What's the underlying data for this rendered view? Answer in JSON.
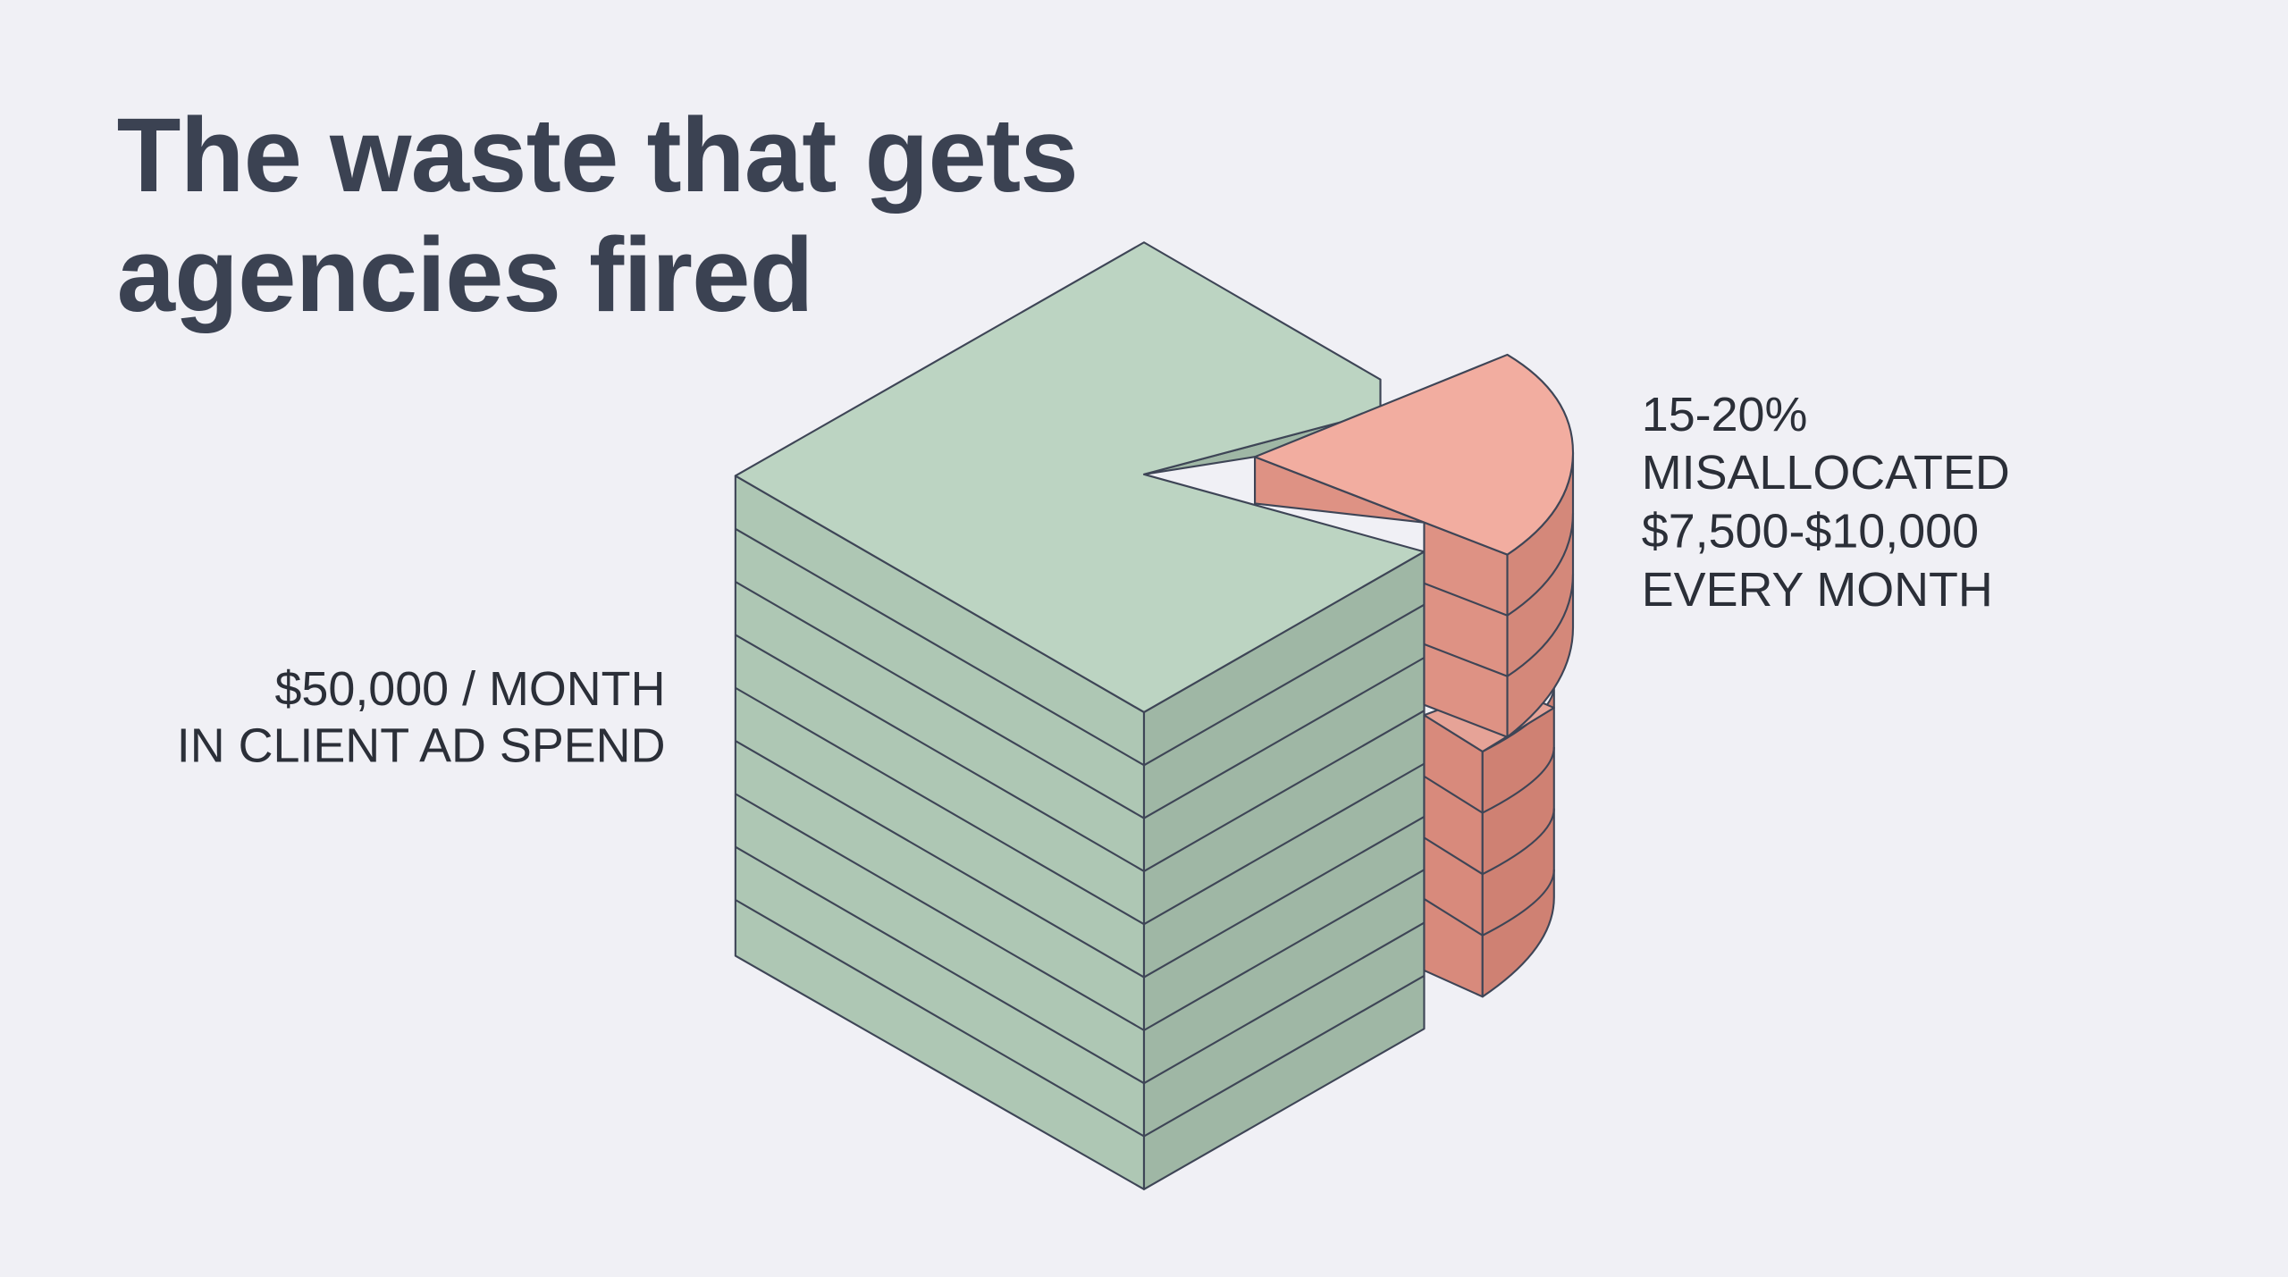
{
  "header": {
    "title_lines": [
      "The waste that gets",
      "agencies fired"
    ]
  },
  "labels": {
    "spend": [
      "$50,000 / MONTH",
      "IN CLIENT AD SPEND"
    ],
    "waste": [
      "15-20%",
      "MISALLOCATED",
      "$7,500-$10,000",
      "EVERY MONTH"
    ]
  }
}
